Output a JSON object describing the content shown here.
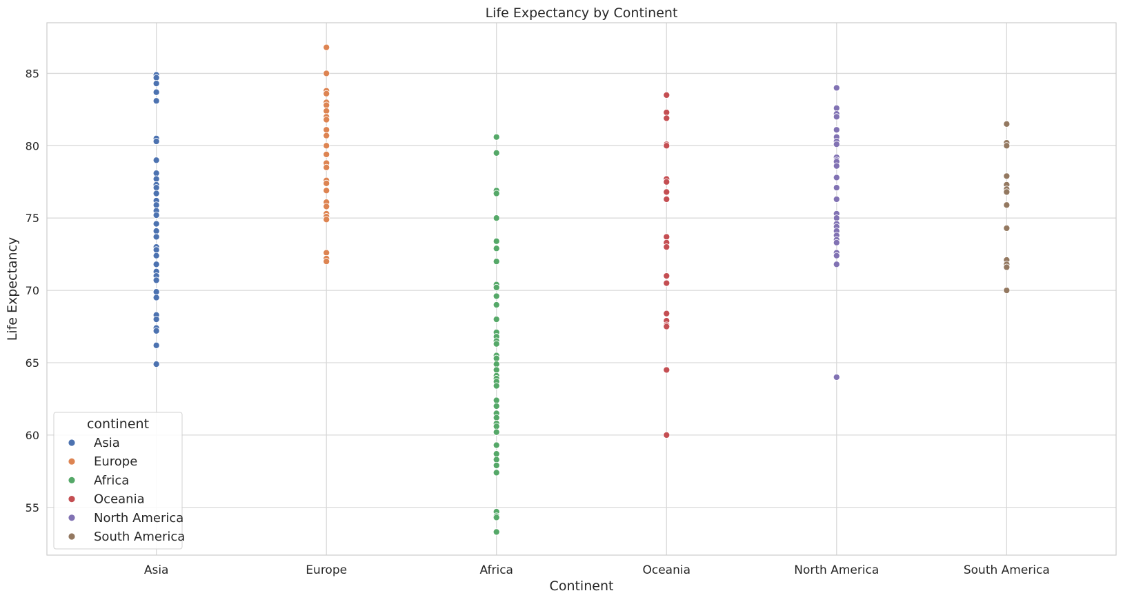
{
  "chart_data": {
    "type": "scatter",
    "title": "Life Expectancy by Continent",
    "xlabel": "Continent",
    "ylabel": "Life Expectancy",
    "categories": [
      "Asia",
      "Europe",
      "Africa",
      "Oceania",
      "North America",
      "South America"
    ],
    "ylim": [
      51.7,
      88.5
    ],
    "yticks": [
      55,
      60,
      65,
      70,
      75,
      80,
      85
    ],
    "grid": true,
    "legend": {
      "title": "continent",
      "position": "lower-left"
    },
    "series": [
      {
        "name": "Asia",
        "color": "#4c72b0",
        "values": [
          84.9,
          84.7,
          84.3,
          83.7,
          83.1,
          80.5,
          80.3,
          79.0,
          78.1,
          77.7,
          77.3,
          77.1,
          76.7,
          76.2,
          75.9,
          75.5,
          75.2,
          74.6,
          74.1,
          73.7,
          73.0,
          72.8,
          72.4,
          71.8,
          71.3,
          71.0,
          70.7,
          69.9,
          69.5,
          68.3,
          68.0,
          67.4,
          67.2,
          66.2,
          64.9
        ]
      },
      {
        "name": "Europe",
        "color": "#dd8452",
        "values": [
          86.8,
          85.0,
          83.8,
          83.6,
          83.0,
          82.8,
          82.4,
          82.0,
          81.8,
          81.1,
          80.7,
          80.0,
          79.4,
          78.8,
          78.5,
          77.6,
          77.4,
          76.9,
          76.1,
          75.8,
          75.3,
          75.1,
          74.9,
          72.6,
          72.2,
          72.0
        ]
      },
      {
        "name": "Africa",
        "color": "#55a868",
        "values": [
          80.6,
          79.5,
          76.9,
          76.7,
          75.0,
          73.4,
          72.9,
          72.0,
          70.4,
          70.2,
          69.6,
          69.0,
          68.0,
          67.1,
          66.8,
          66.5,
          66.3,
          65.5,
          65.3,
          64.9,
          64.5,
          64.1,
          63.9,
          63.7,
          63.4,
          62.4,
          62.0,
          61.5,
          61.2,
          60.8,
          60.6,
          60.2,
          59.3,
          58.7,
          58.3,
          57.9,
          57.4,
          54.7,
          54.4,
          54.3,
          53.3
        ]
      },
      {
        "name": "Oceania",
        "color": "#c44e52",
        "values": [
          83.5,
          82.3,
          81.9,
          80.1,
          80.0,
          77.7,
          77.5,
          76.8,
          76.3,
          73.7,
          73.3,
          73.0,
          71.0,
          70.5,
          68.4,
          67.9,
          67.6,
          67.5,
          64.5,
          60.0
        ]
      },
      {
        "name": "North America",
        "color": "#8172b3",
        "values": [
          84.0,
          82.6,
          82.2,
          82.0,
          81.1,
          80.6,
          80.3,
          80.1,
          79.2,
          79.0,
          78.9,
          78.6,
          77.8,
          77.1,
          76.3,
          75.3,
          75.0,
          74.6,
          74.4,
          74.1,
          73.8,
          73.5,
          73.3,
          72.6,
          72.4,
          71.8,
          64.0
        ]
      },
      {
        "name": "South America",
        "color": "#937860",
        "values": [
          81.5,
          80.2,
          80.0,
          77.9,
          77.3,
          77.0,
          76.8,
          75.9,
          74.3,
          72.1,
          71.8,
          71.6,
          70.0
        ]
      }
    ]
  }
}
